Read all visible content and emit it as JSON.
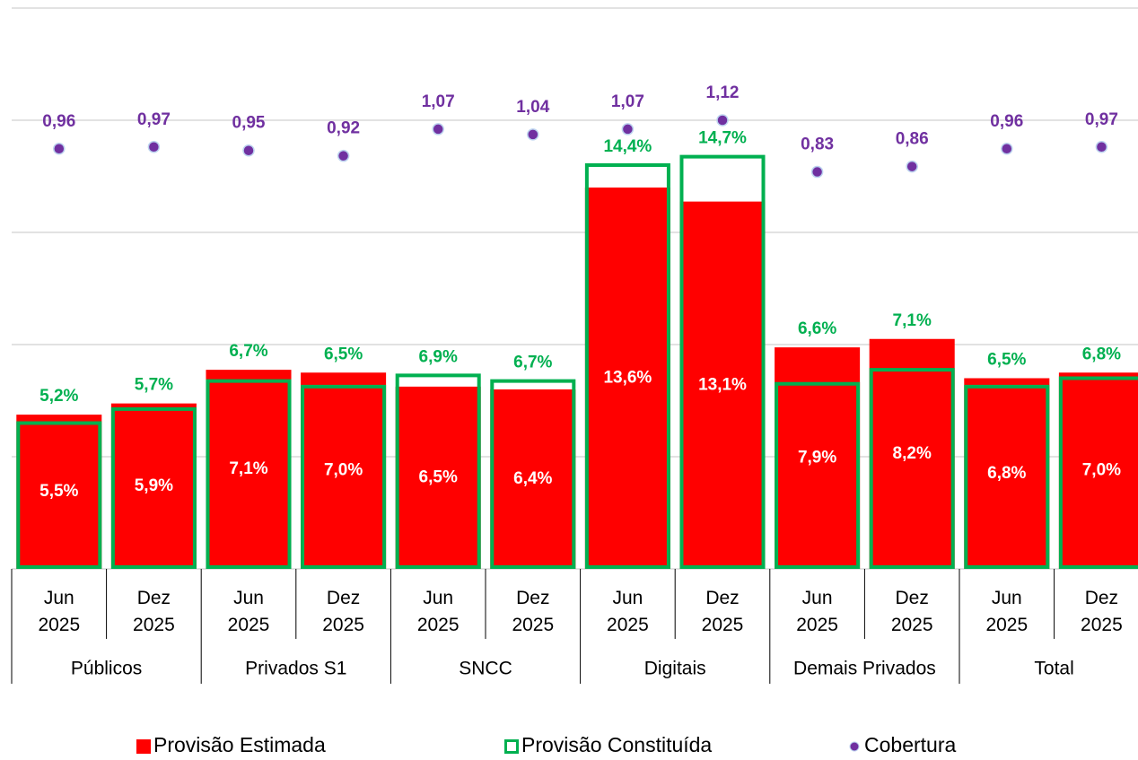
{
  "chart_data": {
    "type": "bar",
    "categories": [
      "Jun\n2025",
      "Dez\n2025",
      "Jun\n2025",
      "Dez\n2025",
      "Jun\n2025",
      "Dez\n2025",
      "Jun\n2025",
      "Dez\n2025",
      "Jun\n2025",
      "Dez\n2025",
      "Jun\n2025",
      "Dez\n2025"
    ],
    "groups": [
      "Públicos",
      "Privados S1",
      "SNCC",
      "Digitais",
      "Demais Privados",
      "Total"
    ],
    "ylim": [
      0,
      20
    ],
    "yticks": [
      0,
      4,
      8,
      12,
      16,
      20
    ],
    "y2lim": [
      -1.4,
      1.75
    ],
    "grid": true,
    "legend": "bottom",
    "series": [
      {
        "name": "Provisão Estimada",
        "type": "bar",
        "color": "#ff0000",
        "values": [
          5.5,
          5.9,
          7.1,
          7.0,
          6.5,
          6.4,
          13.6,
          13.1,
          7.9,
          8.2,
          6.8,
          7.0
        ],
        "value_labels": [
          "5,5%",
          "5,9%",
          "7,1%",
          "7,0%",
          "6,5%",
          "6,4%",
          "13,6%",
          "13,1%",
          "7,9%",
          "8,2%",
          "6,8%",
          "7,0%"
        ]
      },
      {
        "name": "Provisão Constituída",
        "type": "bar-outline",
        "color": "#00b050",
        "values": [
          5.2,
          5.7,
          6.7,
          6.5,
          6.9,
          6.7,
          14.4,
          14.7,
          6.6,
          7.1,
          6.5,
          6.8
        ],
        "value_labels": [
          "5,2%",
          "5,7%",
          "6,7%",
          "6,5%",
          "6,9%",
          "6,7%",
          "14,4%",
          "14,7%",
          "6,6%",
          "7,1%",
          "6,5%",
          "6,8%"
        ]
      },
      {
        "name": "Cobertura",
        "type": "scatter",
        "axis": "y2",
        "color": "#7030a0",
        "values": [
          0.96,
          0.97,
          0.95,
          0.92,
          1.07,
          1.04,
          1.07,
          1.12,
          0.83,
          0.86,
          0.96,
          0.97
        ],
        "value_labels": [
          "0,96",
          "0,97",
          "0,95",
          "0,92",
          "1,07",
          "1,04",
          "1,07",
          "1,12",
          "0,83",
          "0,86",
          "0,96",
          "0,97"
        ]
      }
    ]
  }
}
